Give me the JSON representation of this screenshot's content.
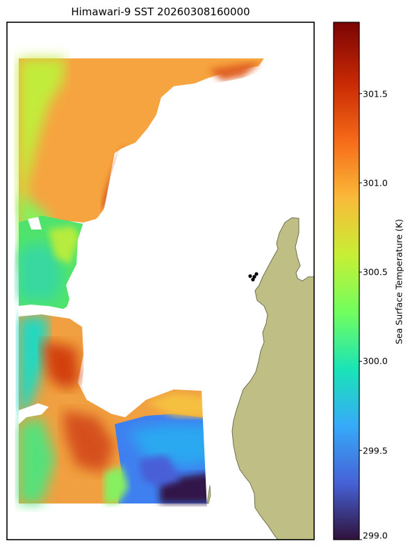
{
  "title": "Himawari-9 SST 20260308160000",
  "colorbar": {
    "label": "Sea Surface Temperature (K)",
    "min": 299.0,
    "max": 301.9,
    "ticks": [
      "299.0",
      "299.5",
      "300.0",
      "300.5",
      "301.0",
      "301.5"
    ],
    "tick_values": [
      299.0,
      299.5,
      300.0,
      300.5,
      301.0,
      301.5
    ],
    "colormap": "turbo",
    "colors": [
      "#30123b",
      "#4662d7",
      "#36aaf9",
      "#1ae4b6",
      "#72fe5e",
      "#c7ef34",
      "#faba39",
      "#f66b19",
      "#ca2a04",
      "#7a0403"
    ]
  },
  "map": {
    "land_color": "#bfbf85",
    "land_edge_color": "#6e6e50",
    "no_data_color": "#ffffff",
    "markers_color": "#000000"
  }
}
